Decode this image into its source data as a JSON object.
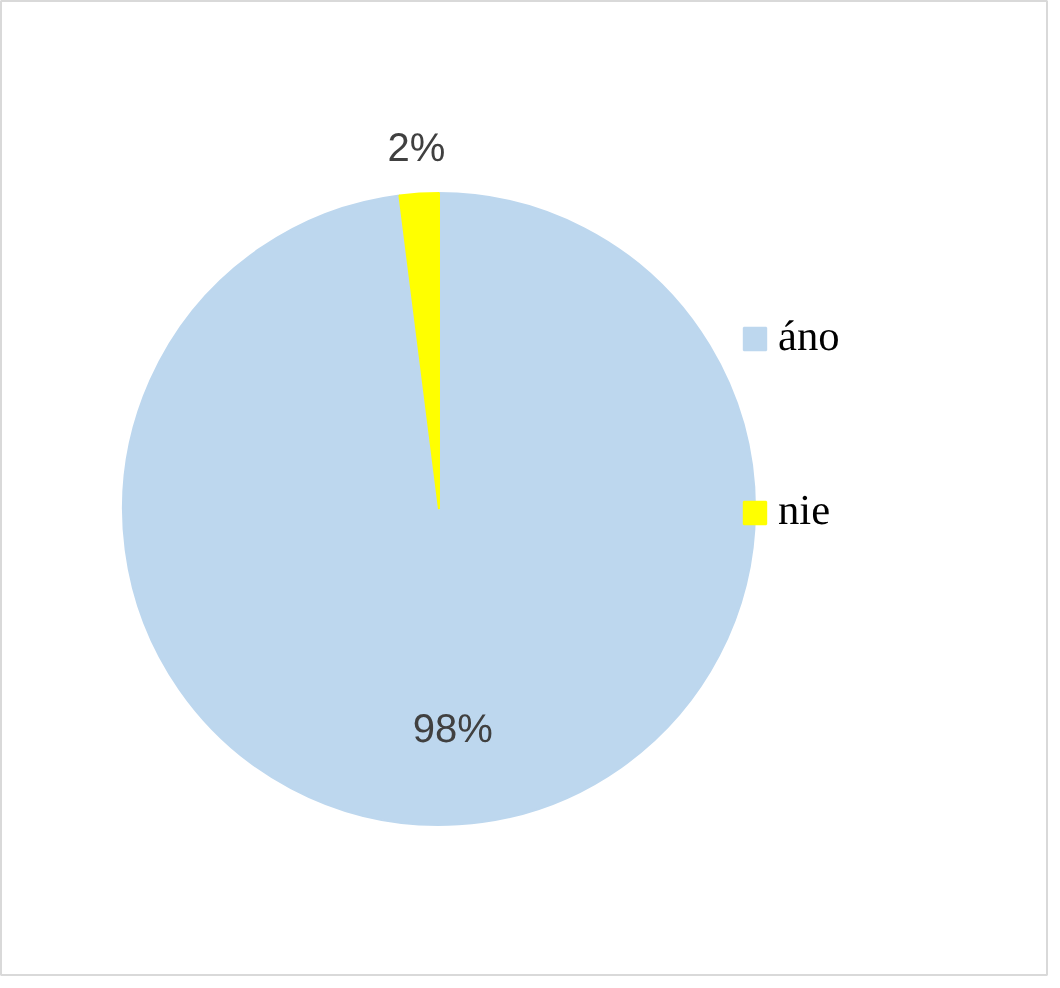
{
  "chart_data": {
    "type": "pie",
    "categories": [
      "áno",
      "nie"
    ],
    "values": [
      98,
      2
    ],
    "colors": [
      "#bdd7ee",
      "#ffff00"
    ],
    "value_labels": [
      "98%",
      "2%"
    ],
    "legend": "right"
  }
}
